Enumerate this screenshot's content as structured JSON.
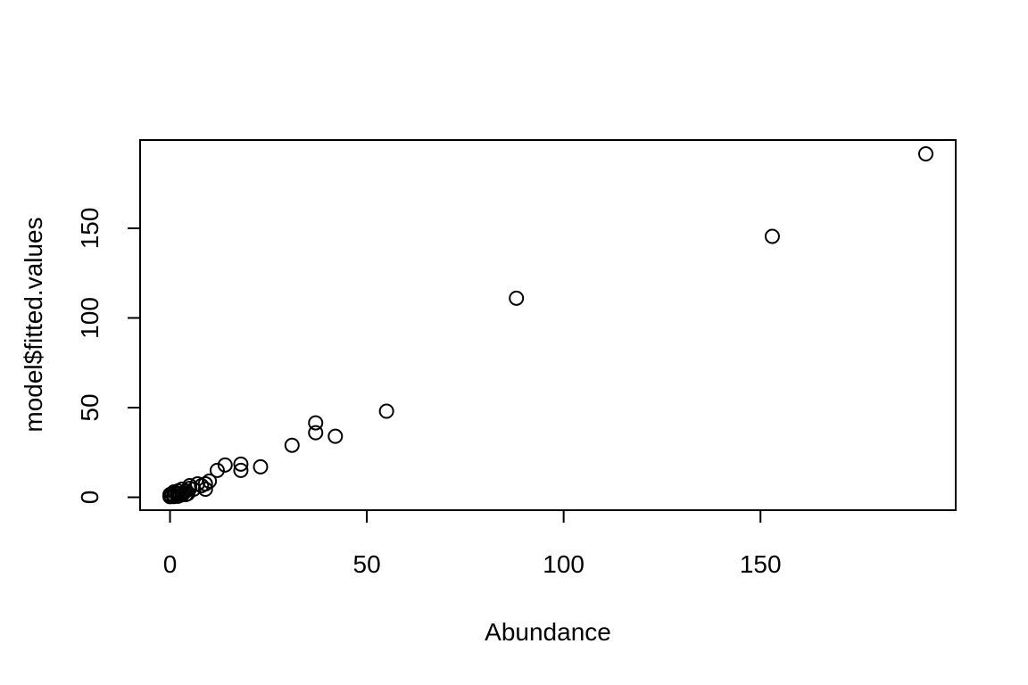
{
  "chart_data": {
    "type": "scatter",
    "title": "",
    "xlabel": "Abundance",
    "ylabel": "model$fitted.values",
    "xlim": [
      -7.6,
      199.6
    ],
    "ylim": [
      -7.2,
      199.2
    ],
    "x_ticks": [
      0,
      50,
      100,
      150
    ],
    "y_ticks": [
      0,
      50,
      100,
      150
    ],
    "grid": false,
    "legend": "none",
    "points": [
      {
        "x": 0,
        "y": 0.3
      },
      {
        "x": 0,
        "y": 0.8
      },
      {
        "x": 0,
        "y": 1.5
      },
      {
        "x": 0.3,
        "y": 0.5
      },
      {
        "x": 0.5,
        "y": 2.0
      },
      {
        "x": 1,
        "y": 0.4
      },
      {
        "x": 1,
        "y": 1.2
      },
      {
        "x": 1,
        "y": 3.0
      },
      {
        "x": 1.5,
        "y": 2.5
      },
      {
        "x": 2,
        "y": 0.6
      },
      {
        "x": 2,
        "y": 2.0
      },
      {
        "x": 2,
        "y": 3.5
      },
      {
        "x": 2.5,
        "y": 1.0
      },
      {
        "x": 3,
        "y": 1.5
      },
      {
        "x": 3,
        "y": 4.5
      },
      {
        "x": 3.5,
        "y": 2.5
      },
      {
        "x": 4,
        "y": 1.5
      },
      {
        "x": 4,
        "y": 3.5
      },
      {
        "x": 4.5,
        "y": 2.0
      },
      {
        "x": 5,
        "y": 5.0
      },
      {
        "x": 5,
        "y": 6.5
      },
      {
        "x": 6,
        "y": 4.5
      },
      {
        "x": 7,
        "y": 7.5
      },
      {
        "x": 8,
        "y": 6.5
      },
      {
        "x": 9,
        "y": 4.5
      },
      {
        "x": 9,
        "y": 7.5
      },
      {
        "x": 10,
        "y": 9.0
      },
      {
        "x": 12,
        "y": 15.0
      },
      {
        "x": 14,
        "y": 18.0
      },
      {
        "x": 18,
        "y": 15.0
      },
      {
        "x": 18,
        "y": 18.5
      },
      {
        "x": 23,
        "y": 17.0
      },
      {
        "x": 31,
        "y": 29.0
      },
      {
        "x": 37,
        "y": 36.0
      },
      {
        "x": 37,
        "y": 41.5
      },
      {
        "x": 42,
        "y": 34.0
      },
      {
        "x": 55,
        "y": 48.0
      },
      {
        "x": 88,
        "y": 111.0
      },
      {
        "x": 153,
        "y": 145.5
      },
      {
        "x": 192,
        "y": 191.5
      }
    ]
  }
}
